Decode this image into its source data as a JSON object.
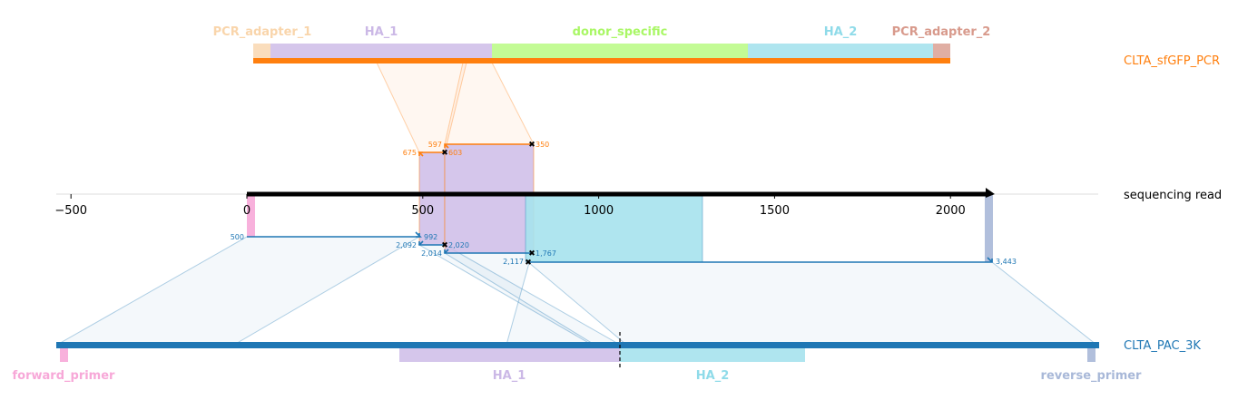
{
  "colors": {
    "pcr": "#ff7f0e",
    "pac": "#1f77b4",
    "pcr_adapter_1": "#f9d5ab",
    "pcr_adapter_2": "#d89a8c",
    "ha_1": "#cbb8e6",
    "donor_specific": "#bdfb8a",
    "ha_2": "#a6e2ed",
    "forward_primer": "#f7a8d8",
    "reverse_primer": "#a8b8d8"
  },
  "tracks": {
    "top": "CLTA_sfGFP_PCR",
    "middle": "sequencing read",
    "bottom": "CLTA_PAC_3K"
  },
  "top_features": {
    "pcr_adapter_1": "PCR_adapter_1",
    "ha_1": "HA_1",
    "donor_specific": "donor_specific",
    "ha_2": "HA_2",
    "pcr_adapter_2": "PCR_adapter_2"
  },
  "bottom_features": {
    "forward_primer": "forward_primer",
    "ha_1": "HA_1",
    "ha_2": "HA_2",
    "reverse_primer": "reverse_primer"
  },
  "read_axis": {
    "ticks": [
      "−500",
      "0",
      "500",
      "1000",
      "1500",
      "2000"
    ],
    "tick_values": [
      -500,
      0,
      500,
      1000,
      1500,
      2000
    ],
    "range": [
      -550,
      2420
    ],
    "read_length": 2120
  },
  "alignments": {
    "pcr": [
      {
        "read_start": 490,
        "read_end": 565,
        "ref_start_label": "675",
        "ref_end_label": "603"
      },
      {
        "read_start": 565,
        "read_end": 810,
        "ref_start_label": "597",
        "ref_end_label": "350"
      }
    ],
    "pac": [
      {
        "read_start": 0,
        "read_end": 490,
        "ref_start_label": "500",
        "ref_end_label": "992"
      },
      {
        "read_start": 490,
        "read_end": 565,
        "ref_start_label": "2,092",
        "ref_end_label": "2,020"
      },
      {
        "read_start": 565,
        "read_end": 810,
        "ref_start_label": "2,014",
        "ref_end_label": "1,767"
      },
      {
        "read_start": 790,
        "read_end": 2120,
        "ref_start_label": "2,117",
        "ref_end_label": "3,443"
      }
    ]
  }
}
